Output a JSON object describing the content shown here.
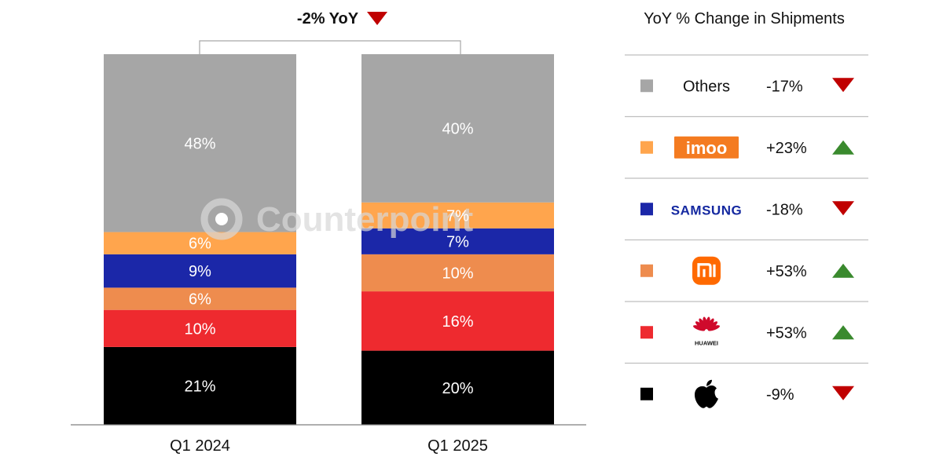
{
  "chart_data": {
    "type": "bar",
    "stacked": true,
    "categories": [
      "Q1 2024",
      "Q1 2025"
    ],
    "series": [
      {
        "name": "Apple",
        "values": [
          21,
          20
        ],
        "color": "#000000"
      },
      {
        "name": "Huawei",
        "values": [
          10,
          16
        ],
        "color": "#ee2a2f"
      },
      {
        "name": "Xiaomi",
        "values": [
          6,
          10
        ],
        "color": "#ee8c4e"
      },
      {
        "name": "Samsung",
        "values": [
          9,
          7
        ],
        "color": "#1b27a8"
      },
      {
        "name": "imoo",
        "values": [
          6,
          7
        ],
        "color": "#ffa54d"
      },
      {
        "name": "Others",
        "values": [
          48,
          40
        ],
        "color": "#a6a6a6"
      }
    ],
    "value_labels": [
      [
        "21%",
        "10%",
        "6%",
        "9%",
        "6%",
        "48%"
      ],
      [
        "20%",
        "16%",
        "10%",
        "7%",
        "7%",
        "40%"
      ]
    ],
    "ylim": [
      0,
      100
    ],
    "yoy_annotation": "-2% YoY",
    "yoy_direction": "down",
    "legend_title": "YoY % Change in Shipments",
    "legend": [
      {
        "brand": "Others",
        "logo": "text",
        "change": "-17%",
        "direction": "down",
        "color": "#a6a6a6"
      },
      {
        "brand": "imoo",
        "logo": "imoo-logo",
        "change": "+23%",
        "direction": "up",
        "color": "#ffa54d"
      },
      {
        "brand": "SAMSUNG",
        "logo": "samsung-logo",
        "change": "-18%",
        "direction": "down",
        "color": "#1b27a8"
      },
      {
        "brand": "Xiaomi",
        "logo": "xiaomi-logo",
        "change": "+53%",
        "direction": "up",
        "color": "#ee8c4e"
      },
      {
        "brand": "HUAWEI",
        "logo": "huawei-logo",
        "change": "+53%",
        "direction": "up",
        "color": "#ee2a2f"
      },
      {
        "brand": "Apple",
        "logo": "apple-logo",
        "change": "-9%",
        "direction": "down",
        "color": "#000000"
      }
    ],
    "grid": false
  },
  "watermark": "Counterpoint",
  "colors": {
    "up": "#3a8a2e",
    "down": "#c00000",
    "rule": "#bfbfbf",
    "axis": "#7f7f7f"
  }
}
